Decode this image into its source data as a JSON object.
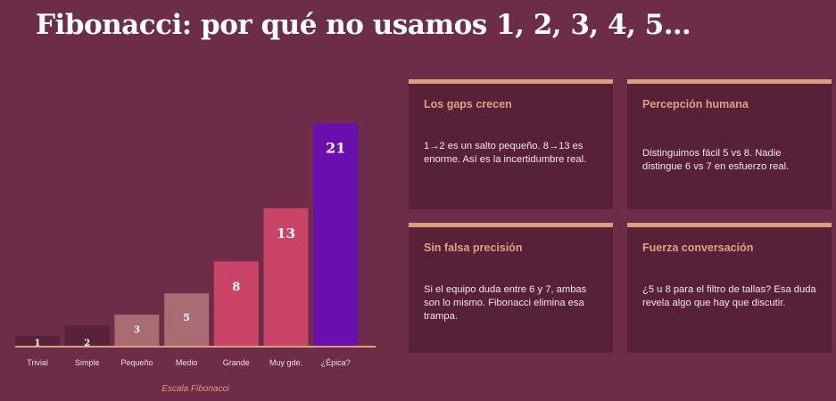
{
  "title": "Fibonacci: por qué no usamos 1, 2, 3, 4, 5…",
  "chart_data": {
    "type": "bar",
    "categories": [
      "Trivial",
      "Simple",
      "Pequeño",
      "Medio",
      "Grande",
      "Muy gde.",
      "¿Épica?"
    ],
    "values": [
      1,
      2,
      3,
      5,
      8,
      13,
      21
    ],
    "xlabel": "Escala Fibonacci",
    "ylim": [
      0,
      21
    ],
    "grid": false,
    "colors": [
      "#5a2238",
      "#5a2238",
      "#a86c72",
      "#a86c72",
      "#c94466",
      "#c94466",
      "#6a0eb0"
    ],
    "axis_color": "#d9a07a"
  },
  "cards": [
    {
      "title": "Los gaps crecen",
      "body": "1→2 es un salto pequeño. 8→13 es enorme. Así es la incertidumbre real."
    },
    {
      "title": "Percepción humana",
      "body": "Distinguimos fácil 5 vs 8. Nadie distingue 6 vs 7 en esfuerzo real."
    },
    {
      "title": "Sin falsa precisión",
      "body": "Si el equipo duda entre 6 y 7, ambas son lo mismo. Fibonacci elimina esa trampa."
    },
    {
      "title": "Fuerza conversación",
      "body": "¿5 u 8 para el filtro de tallas? Esa duda revela algo que hay que discutir."
    }
  ]
}
